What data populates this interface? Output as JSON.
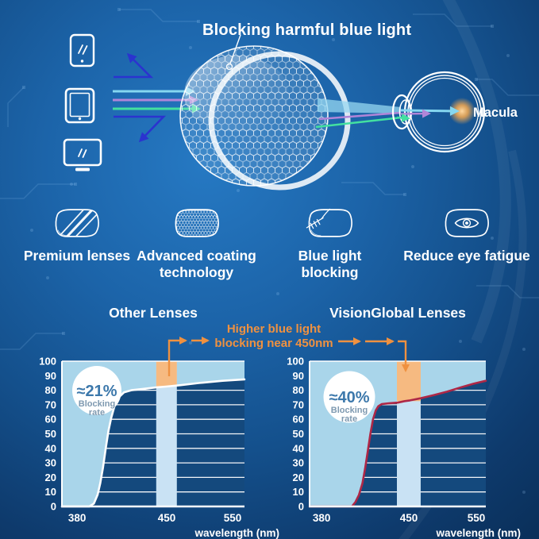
{
  "colors": {
    "background_center": "#2679c3",
    "background_edge": "#0a2f59",
    "accent_orange": "#ef9140",
    "light_blue_fill": "#a9d5ea",
    "pale_band_blue": "#c9e2f4",
    "band_orange": "#f6ba81",
    "curve_white": "#ffffff",
    "curve_red": "#ae2746",
    "ray_cyan": "#86d7f0",
    "ray_purple": "#b185d8",
    "ray_green": "#43e0a0",
    "arrow_blue": "#2b33cf",
    "badge_text_blue": "#3c78ab"
  },
  "hero": {
    "title": "Blocking harmful blue light",
    "macula_label": "Macula",
    "device_icons": [
      "smartphone-icon",
      "tablet-icon",
      "monitor-icon"
    ],
    "lens_icon": "coated-lens-icon",
    "eye_icon": "eye-cross-section-icon"
  },
  "features": {
    "items": [
      {
        "icon": "premium-lens-icon",
        "label": "Premium lenses"
      },
      {
        "icon": "coating-mesh-lens-icon",
        "label": "Advanced coating technology"
      },
      {
        "icon": "blue-light-ray-lens-icon",
        "label": "Blue light blocking"
      },
      {
        "icon": "eye-in-lens-icon",
        "label": "Reduce eye fatigue"
      }
    ]
  },
  "comparison": {
    "annotation": {
      "line1": "Higher blue light",
      "line2": "blocking near 450nm"
    }
  },
  "chart_data": [
    {
      "type": "area",
      "title": "Other Lenses",
      "xlabel": "wavelength (nm)",
      "ylim": [
        0,
        100
      ],
      "grid": true,
      "badge": {
        "value": "≈21%",
        "line1": "Blocking",
        "line2": "rate",
        "cx": 44,
        "cy": 37,
        "r": 31
      },
      "blocking_rate_summary": "≈21% blocking rate",
      "curve_description": "Blocking rises steeply from 0 near 400 nm to about 80% by 430 nm, then climbs slowly to about 88% at 550 nm",
      "curve_color": "#ffffff",
      "plot_bg": "#14497d",
      "fill_above_color": "#a9d5ea",
      "y_ticks": [
        100,
        90,
        80,
        70,
        60,
        50,
        40,
        30,
        20,
        10,
        0
      ],
      "x_axis": {
        "label": "wavelength (nm)",
        "ticks": [
          {
            "label": "380",
            "pct": 8.3
          },
          {
            "label": "450",
            "pct": 57.4
          },
          {
            "label": "550",
            "pct": 93.5
          }
        ]
      },
      "band": {
        "center_pct": 57.3,
        "width_pct": 11.3,
        "color": "#c9e2f4",
        "orange_color": "#f6ba81",
        "orange_bottom_value": 82.5
      },
      "points": [
        {
          "pct": 0,
          "value": 0
        },
        {
          "pct": 15,
          "value": 0
        },
        {
          "pct": 17.5,
          "value": 2
        },
        {
          "pct": 19.5,
          "value": 8
        },
        {
          "pct": 21,
          "value": 16
        },
        {
          "pct": 22.5,
          "value": 27
        },
        {
          "pct": 24,
          "value": 40
        },
        {
          "pct": 25.5,
          "value": 52
        },
        {
          "pct": 27,
          "value": 61
        },
        {
          "pct": 29,
          "value": 70
        },
        {
          "pct": 31,
          "value": 75
        },
        {
          "pct": 34,
          "value": 78.5
        },
        {
          "pct": 38,
          "value": 80
        },
        {
          "pct": 45,
          "value": 81
        },
        {
          "pct": 52,
          "value": 82
        },
        {
          "pct": 57,
          "value": 82.5
        },
        {
          "pct": 65,
          "value": 83.5
        },
        {
          "pct": 75,
          "value": 85
        },
        {
          "pct": 88,
          "value": 86.5
        },
        {
          "pct": 100,
          "value": 87.5
        }
      ]
    },
    {
      "type": "area",
      "title": "VisionGlobal Lenses",
      "xlabel": "wavelength (nm)",
      "ylim": [
        0,
        100
      ],
      "grid": true,
      "badge": {
        "value": "≈40%",
        "line1": "Blocking",
        "line2": "rate",
        "cx": 50,
        "cy": 45,
        "r": 32.5
      },
      "blocking_rate_summary": "≈40% blocking rate",
      "curve_description": "Blocking rises steeply from 0 near 415 nm to about 70% by 435 nm, stays high through 450 nm, then climbs to about 87% at 550 nm",
      "curve_color": "#ae2746",
      "plot_bg": "#14497d",
      "fill_above_color": "#a9d5ea",
      "y_ticks": [
        100,
        90,
        80,
        70,
        60,
        50,
        40,
        30,
        20,
        10,
        0
      ],
      "x_axis": {
        "label": "wavelength (nm)",
        "ticks": [
          {
            "label": "380",
            "pct": 6.8
          },
          {
            "label": "450",
            "pct": 56.3
          },
          {
            "label": "550",
            "pct": 94.6
          }
        ]
      },
      "band": {
        "center_pct": 56.3,
        "width_pct": 13.5,
        "color": "#c9e2f4",
        "orange_color": "#f6ba81",
        "orange_bottom_value": 72.5
      },
      "points": [
        {
          "pct": 0,
          "value": 0
        },
        {
          "pct": 24,
          "value": 0
        },
        {
          "pct": 26,
          "value": 3
        },
        {
          "pct": 28,
          "value": 8
        },
        {
          "pct": 30,
          "value": 16
        },
        {
          "pct": 31.5,
          "value": 26
        },
        {
          "pct": 33,
          "value": 38
        },
        {
          "pct": 34.5,
          "value": 50
        },
        {
          "pct": 36,
          "value": 60
        },
        {
          "pct": 37.5,
          "value": 66
        },
        {
          "pct": 39,
          "value": 69
        },
        {
          "pct": 41,
          "value": 70.5
        },
        {
          "pct": 45,
          "value": 71
        },
        {
          "pct": 50,
          "value": 71.5
        },
        {
          "pct": 54,
          "value": 72.5
        },
        {
          "pct": 57,
          "value": 73
        },
        {
          "pct": 63,
          "value": 74.5
        },
        {
          "pct": 70,
          "value": 76.5
        },
        {
          "pct": 78,
          "value": 79
        },
        {
          "pct": 86,
          "value": 82
        },
        {
          "pct": 93,
          "value": 84.5
        },
        {
          "pct": 100,
          "value": 86.5
        }
      ]
    }
  ]
}
